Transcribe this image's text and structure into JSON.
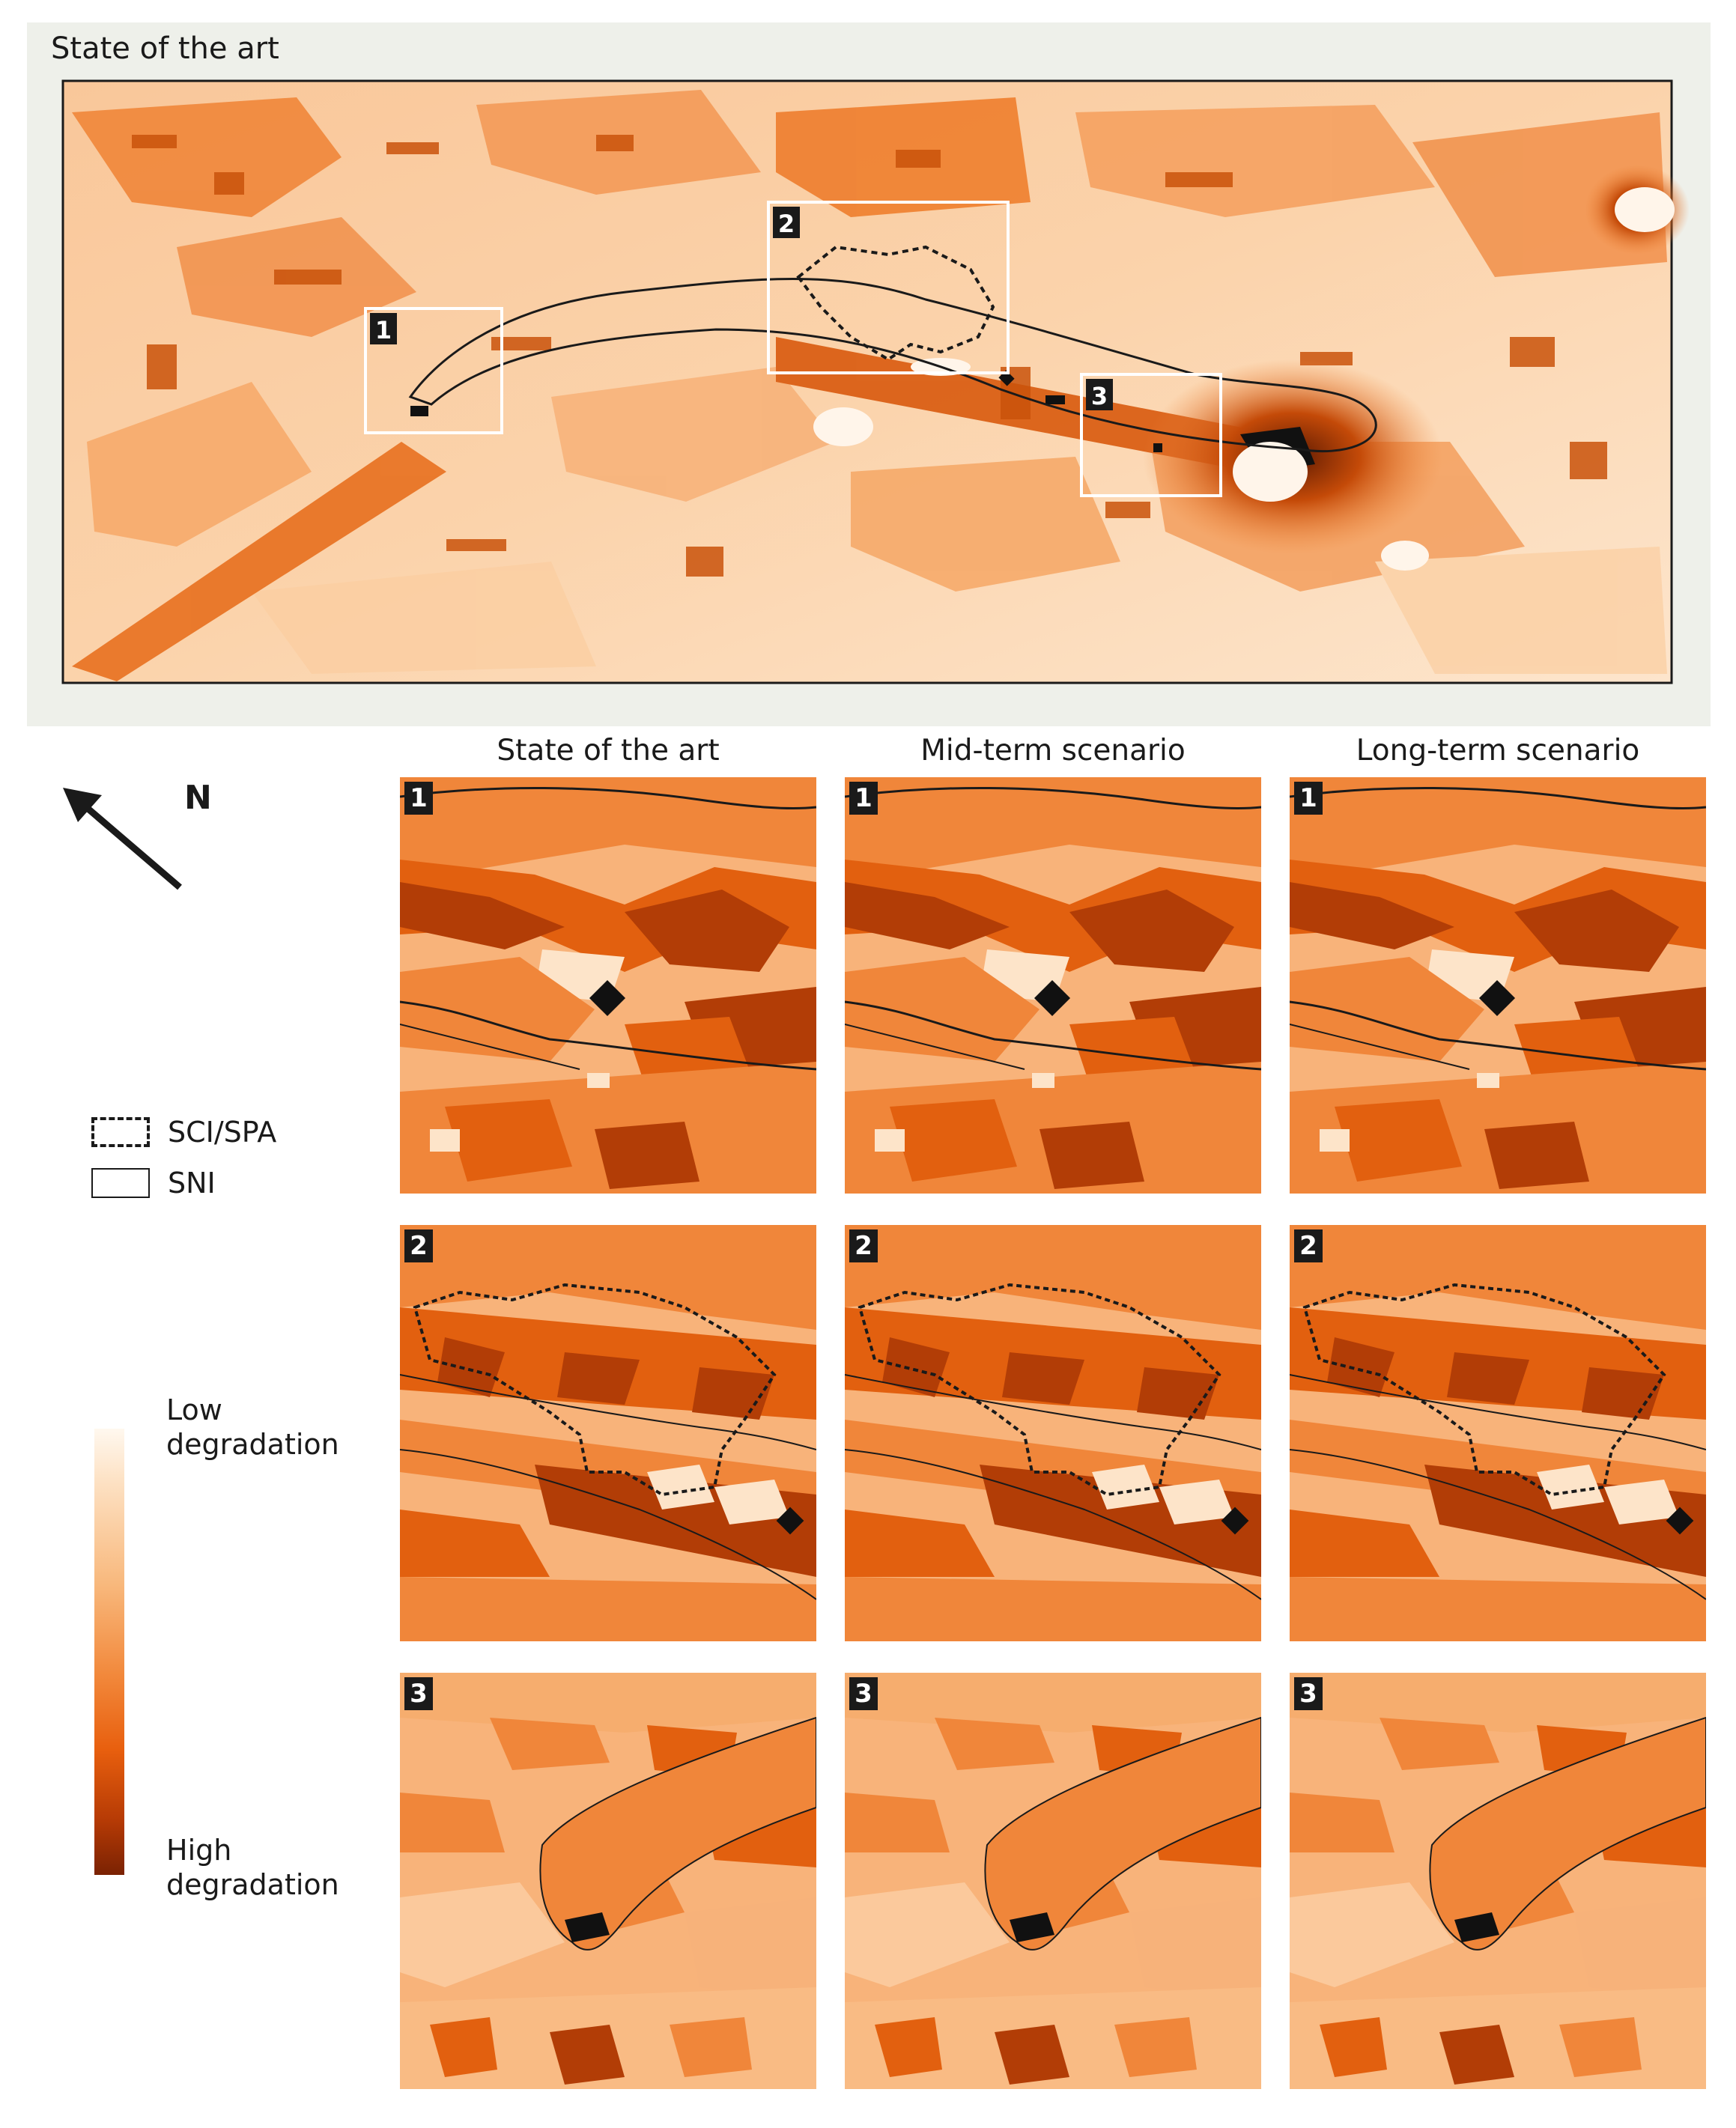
{
  "overview": {
    "title": "State of the art",
    "zoom_boxes": [
      "1",
      "2",
      "3"
    ]
  },
  "columns": [
    "State of the art",
    "Mid-term scenario",
    "Long-term scenario"
  ],
  "rows": [
    "1",
    "2",
    "3"
  ],
  "north_arrow": {
    "label": "N",
    "icon": "north-arrow-icon"
  },
  "legend": {
    "items": [
      {
        "label": "SCI/SPA",
        "style": "dashed"
      },
      {
        "label": "SNI",
        "style": "solid"
      }
    ]
  },
  "colorbar": {
    "low_label": "Low\ndegradation",
    "high_label": "High\ndegradation",
    "low_color": "#fff8ef",
    "high_color": "#7a2203"
  },
  "colors": {
    "light": "#fde4c9",
    "medium_light": "#f8b37a",
    "medium": "#f0863a",
    "strong": "#e2600f",
    "dark": "#b23d06",
    "urban": "#111111",
    "frame": "#1a1a1a",
    "zoom_box": "#ffffff"
  }
}
